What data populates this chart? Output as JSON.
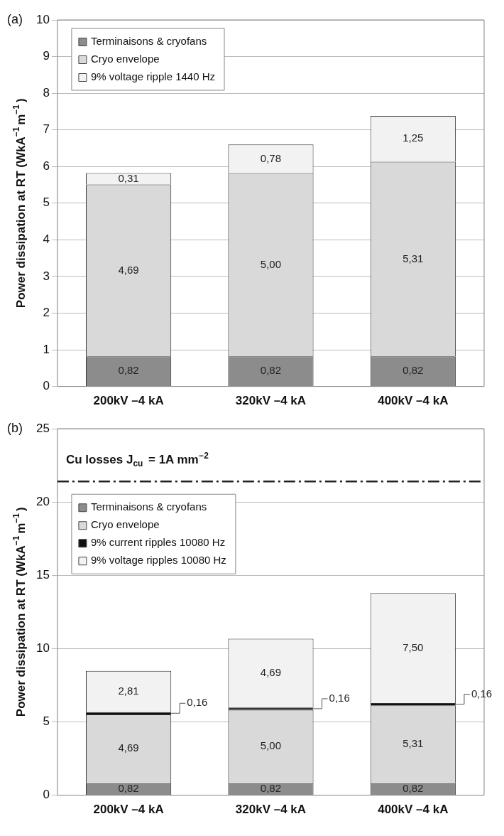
{
  "chart_data": [
    {
      "type": "bar",
      "title": "(a)",
      "ylabel": "Power dissipation at RT (WkA$^{−1}$m$^{−1}$)",
      "categories": [
        "200kV –4 kA",
        "320kV –4 kA",
        "400kV –4 kA"
      ],
      "stacked": true,
      "ylim": [
        0,
        10
      ],
      "yticks": [
        0,
        1,
        2,
        3,
        4,
        5,
        6,
        7,
        8,
        9,
        10
      ],
      "grid": "y",
      "legend": "top left",
      "series": [
        {
          "name": "Terminaisons & cryofans",
          "color": "#8c8c8c",
          "values": [
            0.82,
            0.82,
            0.82
          ],
          "value_labels": [
            "0,82",
            "0,82",
            "0,82"
          ]
        },
        {
          "name": "Cryo envelope",
          "color": "#d9d9d9",
          "values": [
            4.69,
            5.0,
            5.31
          ],
          "value_labels": [
            "4,69",
            "5,00",
            "5,31"
          ]
        },
        {
          "name": "9% voltage ripple 1440 Hz",
          "color": "#f2f2f2",
          "values": [
            0.31,
            0.78,
            1.25
          ],
          "value_labels": [
            "0,31",
            "0,78",
            "1,25"
          ]
        }
      ]
    },
    {
      "type": "bar",
      "title": "(b)",
      "ylabel": "Power dissipation at RT (WkA$^{−1}$m$^{−1}$)",
      "categories": [
        "200kV –4 kA",
        "320kV –4 kA",
        "400kV –4 kA"
      ],
      "stacked": true,
      "ylim": [
        0,
        25
      ],
      "yticks": [
        0,
        5,
        10,
        15,
        20,
        25
      ],
      "grid": "y",
      "legend": "top left",
      "annotations": [
        "Cu losses J$_{cu}$ = 1A mm$^{−2}$"
      ],
      "ref_lines": [
        {
          "axis": "y",
          "value": 21.4,
          "line_style": "dashed",
          "color": "#222222"
        }
      ],
      "series": [
        {
          "name": "Terminaisons & cryofans",
          "color": "#8c8c8c",
          "values": [
            0.82,
            0.82,
            0.82
          ],
          "value_labels": [
            "0,82",
            "0,82",
            "0,82"
          ]
        },
        {
          "name": "Cryo envelope",
          "color": "#d9d9d9",
          "values": [
            4.69,
            5.0,
            5.31
          ],
          "value_labels": [
            "4,69",
            "5,00",
            "5,31"
          ]
        },
        {
          "name": "9% current ripples 10080 Hz",
          "color": "#111111",
          "values": [
            0.16,
            0.16,
            0.16
          ],
          "value_labels": [
            "0,16",
            "0,16",
            "0,16"
          ]
        },
        {
          "name": "9% voltage ripples 10080 Hz",
          "color": "#f2f2f2",
          "values": [
            2.81,
            4.69,
            7.5
          ],
          "value_labels": [
            "2,81",
            "4,69",
            "7,50"
          ]
        }
      ]
    }
  ]
}
